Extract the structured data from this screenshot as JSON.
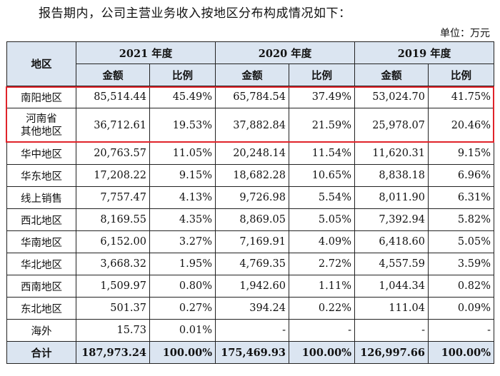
{
  "intro": "报告期内，公司主营业务收入按地区分布构成情况如下：",
  "unit": "单位：万元",
  "header": {
    "region": "地区",
    "years": [
      "2021 年度",
      "2020 年度",
      "2019 年度"
    ],
    "amount": "金额",
    "ratio": "比例"
  },
  "rows": [
    {
      "region": "南阳地区",
      "v": [
        "85,514.44",
        "45.49%",
        "65,784.54",
        "37.49%",
        "53,024.70",
        "41.75%"
      ]
    },
    {
      "region_lines": [
        "河南省",
        "其他地区"
      ],
      "v": [
        "36,712.61",
        "19.53%",
        "37,882.84",
        "21.59%",
        "25,978.07",
        "20.46%"
      ]
    },
    {
      "region": "华中地区",
      "v": [
        "20,763.57",
        "11.05%",
        "20,248.14",
        "11.54%",
        "11,620.31",
        "9.15%"
      ]
    },
    {
      "region": "华东地区",
      "v": [
        "17,208.22",
        "9.15%",
        "18,682.28",
        "10.65%",
        "8,838.18",
        "6.96%"
      ]
    },
    {
      "region": "线上销售",
      "v": [
        "7,757.47",
        "4.13%",
        "9,726.98",
        "5.54%",
        "8,011.90",
        "6.31%"
      ]
    },
    {
      "region": "西北地区",
      "v": [
        "8,169.55",
        "4.35%",
        "8,869.05",
        "5.05%",
        "7,392.94",
        "5.82%"
      ]
    },
    {
      "region": "华南地区",
      "v": [
        "6,152.00",
        "3.27%",
        "7,169.91",
        "4.09%",
        "6,418.60",
        "5.05%"
      ]
    },
    {
      "region": "华北地区",
      "v": [
        "3,668.32",
        "1.95%",
        "4,769.35",
        "2.72%",
        "4,557.59",
        "3.59%"
      ]
    },
    {
      "region": "西南地区",
      "v": [
        "1,509.97",
        "0.80%",
        "1,942.60",
        "1.11%",
        "1,044.34",
        "0.82%"
      ]
    },
    {
      "region": "东北地区",
      "v": [
        "501.37",
        "0.27%",
        "394.24",
        "0.22%",
        "111.04",
        "0.09%"
      ]
    },
    {
      "region": "海外",
      "v": [
        "15.73",
        "0.01%",
        "-",
        "-",
        "-",
        "-"
      ]
    }
  ],
  "total": {
    "region": "合计",
    "v": [
      "187,973.24",
      "100.00%",
      "175,469.93",
      "100.00%",
      "126,997.66",
      "100.00%"
    ]
  },
  "highlight_color": "#e0232a",
  "header_bg": "#dbe5f1"
}
